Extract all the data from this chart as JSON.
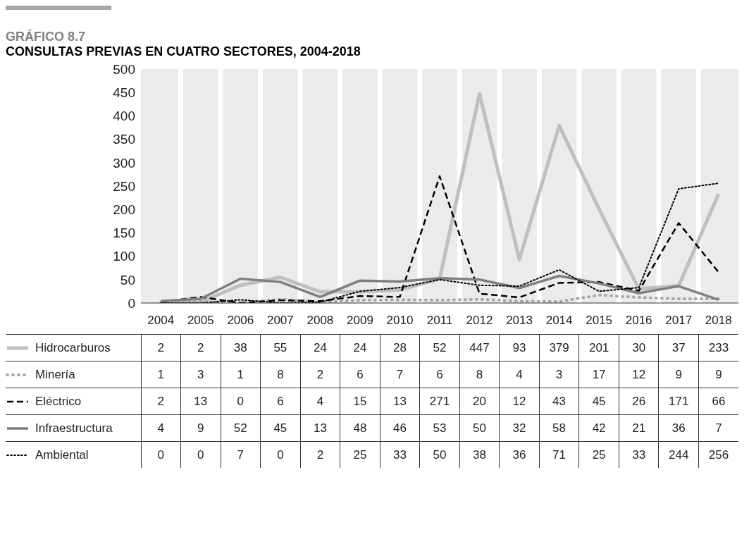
{
  "chart_data": {
    "type": "line",
    "title": "GRÁFICO 8.7",
    "subtitle": "CONSULTAS PREVIAS EN CUATRO SECTORES, 2004-2018",
    "categories": [
      "2004",
      "2005",
      "2006",
      "2007",
      "2008",
      "2009",
      "2010",
      "2011",
      "2012",
      "2013",
      "2014",
      "2015",
      "2016",
      "2017",
      "2018"
    ],
    "series": [
      {
        "name": "Hidrocarburos",
        "color": "#bfbfbf",
        "line_style": "solid",
        "values": [
          2,
          2,
          38,
          55,
          24,
          24,
          28,
          52,
          447,
          93,
          379,
          201,
          30,
          37,
          233
        ]
      },
      {
        "name": "Minería",
        "color": "#a6a6a6",
        "line_style": "dotted",
        "values": [
          1,
          3,
          1,
          8,
          2,
          6,
          7,
          6,
          8,
          4,
          3,
          17,
          12,
          9,
          9
        ]
      },
      {
        "name": "Eléctrico",
        "color": "#000000",
        "line_style": "dashed",
        "values": [
          2,
          13,
          0,
          6,
          4,
          15,
          13,
          271,
          20,
          12,
          43,
          45,
          26,
          171,
          66
        ]
      },
      {
        "name": "Infraestructura",
        "color": "#7f7f7f",
        "line_style": "solid",
        "values": [
          4,
          9,
          52,
          45,
          13,
          48,
          46,
          53,
          50,
          32,
          58,
          42,
          21,
          36,
          7
        ]
      },
      {
        "name": "Ambiental",
        "color": "#000000",
        "line_style": "dotted",
        "values": [
          0,
          0,
          7,
          0,
          2,
          25,
          33,
          50,
          38,
          36,
          71,
          25,
          33,
          244,
          256
        ]
      }
    ],
    "ylim": [
      0,
      500
    ],
    "yticks": [
      0,
      50,
      100,
      150,
      200,
      250,
      300,
      350,
      400,
      450,
      500
    ],
    "grid": "x",
    "legend": "bottom",
    "marker": "none",
    "data_labels": true
  }
}
